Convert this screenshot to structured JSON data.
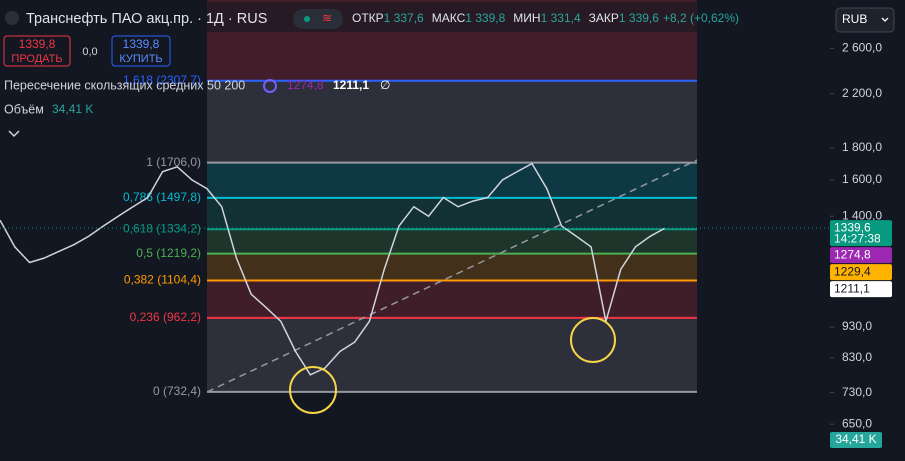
{
  "header": {
    "title": "Транснефть ПАО акц.пр. · 1Д · RUS",
    "ohlc": [
      {
        "label": "ОТКР",
        "value": "1 337,6"
      },
      {
        "label": "МАКС",
        "value": "1 339,8"
      },
      {
        "label": "МИН",
        "value": "1 331,4"
      },
      {
        "label": "ЗАКР",
        "value": "1 339,6"
      }
    ],
    "change": "+8,2 (+0,62%)"
  },
  "trade": {
    "sell_price": "1339,8",
    "sell_label": "ПРОДАТЬ",
    "spread": "0,0",
    "buy_price": "1339,8",
    "buy_label": "КУПИТЬ"
  },
  "indicators": {
    "ma_title": "Пересечение скользящих средних 50 200",
    "ma_value_1": "1274,8",
    "ma_value_2": "1211,1",
    "ma_flag": "∅",
    "volume_title": "Объём",
    "volume_value": "34,41 K"
  },
  "currency": "RUB",
  "chart_data": {
    "type": "line",
    "log_scale": true,
    "color": "#d1d4dc",
    "ylim": [
      578,
      3108
    ],
    "yticks": [
      {
        "value": 2600,
        "label": "2 600,0"
      },
      {
        "value": 2200,
        "label": "2 200,0"
      },
      {
        "value": 1800,
        "label": "1 800,0"
      },
      {
        "value": 1600,
        "label": "1 600,0"
      },
      {
        "value": 1400,
        "label": "1 400,0"
      },
      {
        "value": 930,
        "label": "930,0"
      },
      {
        "value": 830,
        "label": "830,0"
      },
      {
        "value": 730,
        "label": "730,0"
      },
      {
        "value": 650,
        "label": "650,0"
      }
    ],
    "values": [
      1380,
      1250,
      1180,
      1200,
      1230,
      1260,
      1300,
      1350,
      1400,
      1450,
      1500,
      1650,
      1680,
      1600,
      1550,
      1450,
      1200,
      1050,
      1000,
      950,
      850,
      780,
      800,
      850,
      880,
      950,
      1150,
      1350,
      1450,
      1400,
      1500,
      1450,
      1480,
      1500,
      1600,
      1650,
      1700,
      1550,
      1350,
      1300,
      1250,
      950,
      1150,
      1250,
      1300,
      1340
    ],
    "fib_levels": [
      {
        "value": 2307.7,
        "label": "1,618 (2307,7)",
        "color": "#2962ff"
      },
      {
        "value": 1706.0,
        "label": "1 (1706,0)",
        "color": "#9598a1"
      },
      {
        "value": 1497.8,
        "label": "0,786 (1497,8)",
        "color": "#00bcd4"
      },
      {
        "value": 1334.2,
        "label": "0,618 (1334,2)",
        "color": "#089981"
      },
      {
        "value": 1219.2,
        "label": "0,5 (1219,2)",
        "color": "#4caf50"
      },
      {
        "value": 1104.4,
        "label": "0,382 (1104,4)",
        "color": "#ff9800"
      },
      {
        "value": 962.2,
        "label": "0,236 (962,2)",
        "color": "#f23645"
      },
      {
        "value": 732.4,
        "label": "0 (732,4)",
        "color": "#9598a1"
      }
    ],
    "price_badges": [
      {
        "value": 1339.6,
        "label": "1339,6",
        "color": "#089981",
        "time": "14:27:38"
      },
      {
        "value": 1274.8,
        "label": "1274,8",
        "color": "#9c27b0"
      },
      {
        "value": 1229.4,
        "label": "1229,4",
        "color": "#ffb300"
      },
      {
        "value": 1211.1,
        "label": "1211,1",
        "color": "#ffffff"
      }
    ]
  }
}
